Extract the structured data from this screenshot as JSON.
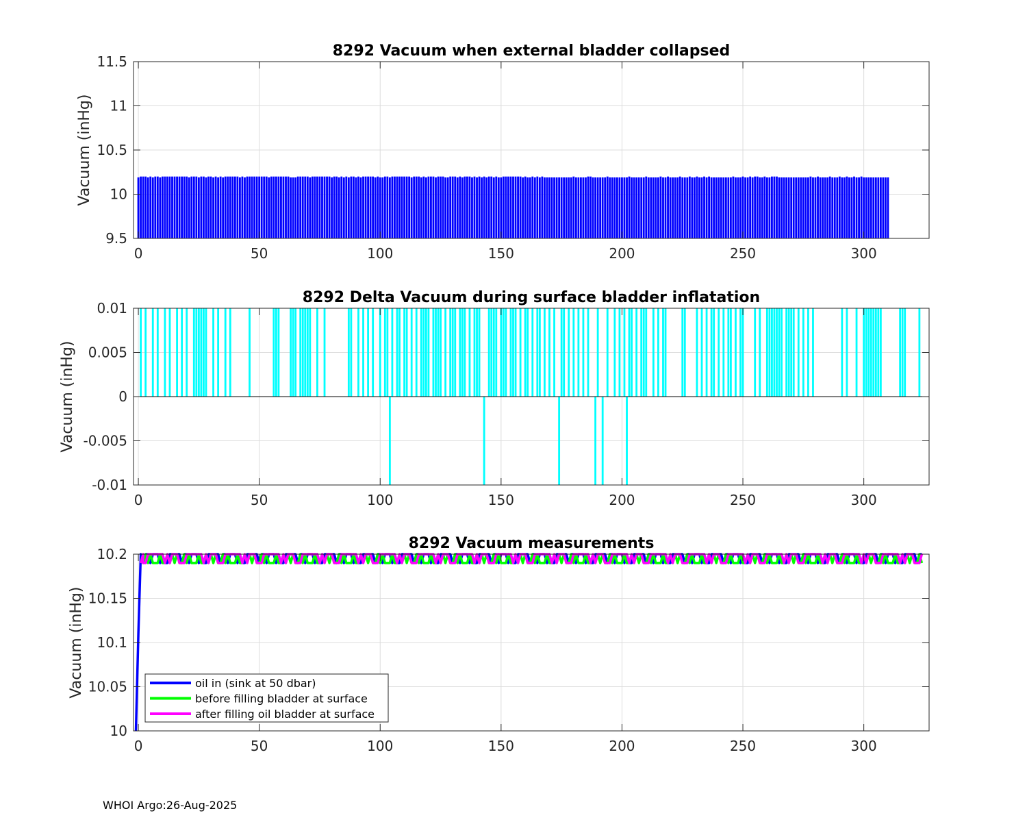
{
  "footer": {
    "text": "WHOI Argo:26-Aug-2025"
  },
  "chart_data": [
    {
      "type": "bar",
      "title": "8292 Vacuum when external bladder collapsed",
      "xlabel": "",
      "ylabel": "Vacuum (inHg)",
      "xlim": [
        -2,
        327
      ],
      "ylim": [
        9.5,
        11.5
      ],
      "xticks": [
        0,
        50,
        100,
        150,
        200,
        250,
        300
      ],
      "yticks": [
        9.5,
        10,
        10.5,
        11,
        11.5
      ],
      "ytick_labels": [
        "9.5",
        "10",
        "10.5",
        "11",
        "11.5"
      ],
      "grid": true,
      "color": "#0000ff",
      "x_start": 0,
      "values": [
        10.19,
        10.2,
        10.2,
        10.2,
        10.19,
        10.2,
        10.19,
        10.2,
        10.2,
        10.19,
        10.2,
        10.2,
        10.2,
        10.2,
        10.2,
        10.2,
        10.2,
        10.2,
        10.2,
        10.2,
        10.2,
        10.19,
        10.2,
        10.2,
        10.2,
        10.19,
        10.2,
        10.2,
        10.19,
        10.2,
        10.2,
        10.19,
        10.2,
        10.19,
        10.2,
        10.19,
        10.2,
        10.2,
        10.2,
        10.2,
        10.2,
        10.2,
        10.19,
        10.2,
        10.19,
        10.2,
        10.2,
        10.2,
        10.2,
        10.2,
        10.2,
        10.2,
        10.2,
        10.2,
        10.19,
        10.2,
        10.2,
        10.2,
        10.2,
        10.2,
        10.2,
        10.2,
        10.2,
        10.19,
        10.19,
        10.19,
        10.2,
        10.2,
        10.2,
        10.2,
        10.2,
        10.19,
        10.2,
        10.2,
        10.2,
        10.2,
        10.2,
        10.2,
        10.2,
        10.2,
        10.19,
        10.2,
        10.2,
        10.19,
        10.2,
        10.19,
        10.2,
        10.19,
        10.2,
        10.2,
        10.19,
        10.2,
        10.19,
        10.2,
        10.2,
        10.2,
        10.2,
        10.2,
        10.19,
        10.2,
        10.19,
        10.19,
        10.2,
        10.2,
        10.19,
        10.2,
        10.2,
        10.2,
        10.2,
        10.2,
        10.2,
        10.2,
        10.2,
        10.19,
        10.2,
        10.2,
        10.2,
        10.19,
        10.2,
        10.19,
        10.2,
        10.2,
        10.2,
        10.19,
        10.2,
        10.2,
        10.2,
        10.19,
        10.19,
        10.2,
        10.2,
        10.2,
        10.19,
        10.2,
        10.19,
        10.2,
        10.2,
        10.2,
        10.19,
        10.2,
        10.19,
        10.2,
        10.19,
        10.2,
        10.19,
        10.2,
        10.2,
        10.19,
        10.2,
        10.19,
        10.19,
        10.2,
        10.2,
        10.2,
        10.2,
        10.2,
        10.2,
        10.2,
        10.2,
        10.19,
        10.2,
        10.19,
        10.19,
        10.2,
        10.19,
        10.2,
        10.19,
        10.2,
        10.19,
        10.19,
        10.19,
        10.19,
        10.19,
        10.19,
        10.19,
        10.19,
        10.19,
        10.19,
        10.19,
        10.19,
        10.2,
        10.19,
        10.19,
        10.19,
        10.19,
        10.19,
        10.2,
        10.2,
        10.19,
        10.19,
        10.19,
        10.19,
        10.19,
        10.19,
        10.2,
        10.19,
        10.19,
        10.19,
        10.19,
        10.19,
        10.19,
        10.19,
        10.19,
        10.2,
        10.19,
        10.19,
        10.19,
        10.19,
        10.19,
        10.19,
        10.2,
        10.19,
        10.19,
        10.19,
        10.19,
        10.19,
        10.2,
        10.19,
        10.19,
        10.2,
        10.19,
        10.19,
        10.19,
        10.19,
        10.2,
        10.19,
        10.19,
        10.19,
        10.2,
        10.19,
        10.19,
        10.2,
        10.19,
        10.19,
        10.2,
        10.19,
        10.2,
        10.19,
        10.19,
        10.19,
        10.19,
        10.19,
        10.19,
        10.19,
        10.19,
        10.19,
        10.2,
        10.19,
        10.19,
        10.19,
        10.2,
        10.19,
        10.19,
        10.2,
        10.19,
        10.2,
        10.2,
        10.19,
        10.19,
        10.2,
        10.19,
        10.19,
        10.2,
        10.2,
        10.2,
        10.19,
        10.19,
        10.19,
        10.19,
        10.19,
        10.19,
        10.19,
        10.19,
        10.19,
        10.19,
        10.19,
        10.19,
        10.19,
        10.2,
        10.19,
        10.19,
        10.2,
        10.19,
        10.19,
        10.19,
        10.19,
        10.2,
        10.19,
        10.19,
        10.19,
        10.2,
        10.19,
        10.19,
        10.2,
        10.19,
        10.19,
        10.2,
        10.19,
        10.19,
        10.2,
        10.19,
        10.19,
        10.19,
        10.19,
        10.19,
        10.19,
        10.19,
        10.19,
        10.19,
        10.19,
        10.19
      ]
    },
    {
      "type": "bar",
      "title": "8292 Delta Vacuum during surface bladder inflatation",
      "xlabel": "",
      "ylabel": "Vacuum (inHg)",
      "xlim": [
        -2,
        327
      ],
      "ylim": [
        -0.01,
        0.01
      ],
      "xticks": [
        0,
        50,
        100,
        150,
        200,
        250,
        300
      ],
      "yticks": [
        -0.01,
        -0.005,
        0,
        0.005,
        0.01
      ],
      "ytick_labels": [
        "-0.01",
        "-0.005",
        "0",
        "0.005",
        "0.01"
      ],
      "grid": true,
      "color": "#00ffff",
      "positive_x": [
        1,
        3,
        6,
        8,
        11,
        13,
        16,
        18,
        20,
        23,
        24,
        25,
        26,
        27,
        28,
        31,
        33,
        36,
        38,
        46,
        56,
        57,
        58,
        63,
        64,
        65,
        67,
        68,
        69,
        70,
        71,
        74,
        77,
        87,
        88,
        91,
        93,
        95,
        97,
        100,
        102,
        103,
        105,
        107,
        108,
        110,
        111,
        113,
        115,
        117,
        118,
        119,
        120,
        122,
        123,
        124,
        125,
        127,
        129,
        130,
        131,
        133,
        134,
        135,
        137,
        139,
        140,
        141,
        145,
        146,
        147,
        148,
        150,
        151,
        152,
        154,
        155,
        156,
        158,
        160,
        161,
        163,
        165,
        166,
        168,
        170,
        172,
        175,
        176,
        178,
        180,
        182,
        184,
        186,
        190,
        194,
        197,
        199,
        201,
        203,
        204,
        206,
        208,
        209,
        210,
        213,
        215,
        217,
        218,
        225,
        226,
        231,
        233,
        235,
        237,
        238,
        240,
        242,
        244,
        245,
        247,
        249,
        250,
        255,
        257,
        260,
        261,
        262,
        263,
        264,
        265,
        266,
        268,
        269,
        270,
        271,
        273,
        275,
        277,
        279,
        291,
        293,
        297,
        300,
        301,
        302,
        303,
        304,
        305,
        306,
        307,
        315,
        316,
        317,
        323
      ],
      "negative_x": [
        104,
        143,
        174,
        189,
        192,
        202
      ]
    },
    {
      "type": "line",
      "title": "8292 Vacuum measurements",
      "xlabel": "",
      "ylabel": "Vacuum (inHg)",
      "xlim": [
        -2,
        327
      ],
      "ylim": [
        10,
        10.2
      ],
      "xticks": [
        0,
        50,
        100,
        150,
        200,
        250,
        300
      ],
      "yticks": [
        10,
        10.05,
        10.1,
        10.15,
        10.2
      ],
      "ytick_labels": [
        "10",
        "10.05",
        "10.1",
        "10.15",
        "10.2"
      ],
      "grid": true,
      "legend": "bottom-left",
      "series": [
        {
          "name": "oil in (sink at 50 dbar)",
          "color": "#0000ff",
          "start": [
            [
              -1,
              10.0
            ],
            [
              0,
              10.11
            ],
            [
              1,
              10.2
            ]
          ],
          "pattern": [
            10.2,
            10.2,
            10.19,
            10.2,
            10.2,
            10.19,
            10.2,
            10.2,
            10.2,
            10.19,
            10.2,
            10.19,
            10.19,
            10.2,
            10.2,
            10.2
          ],
          "range": [
            2,
            324
          ]
        },
        {
          "name": "before filling bladder at surface",
          "color": "#00ff00",
          "start": [
            [
              1,
              10.19
            ],
            [
              2,
              10.2
            ]
          ],
          "pattern": [
            10.19,
            10.2,
            10.19,
            10.2,
            10.19,
            10.2,
            10.19,
            10.19,
            10.2,
            10.19,
            10.2,
            10.19,
            10.19,
            10.19,
            10.2,
            10.19
          ],
          "range": [
            2,
            324
          ]
        },
        {
          "name": "after filling oil bladder at surface",
          "color": "#ff00ff",
          "start": [
            [
              1,
              10.19
            ],
            [
              2,
              10.2
            ]
          ],
          "pattern": [
            10.2,
            10.2,
            10.2,
            10.2,
            10.2,
            10.19,
            10.2,
            10.19,
            10.2,
            10.2,
            10.2,
            10.19,
            10.19,
            10.19,
            10.2,
            10.2
          ],
          "range": [
            2,
            324
          ]
        }
      ]
    }
  ]
}
